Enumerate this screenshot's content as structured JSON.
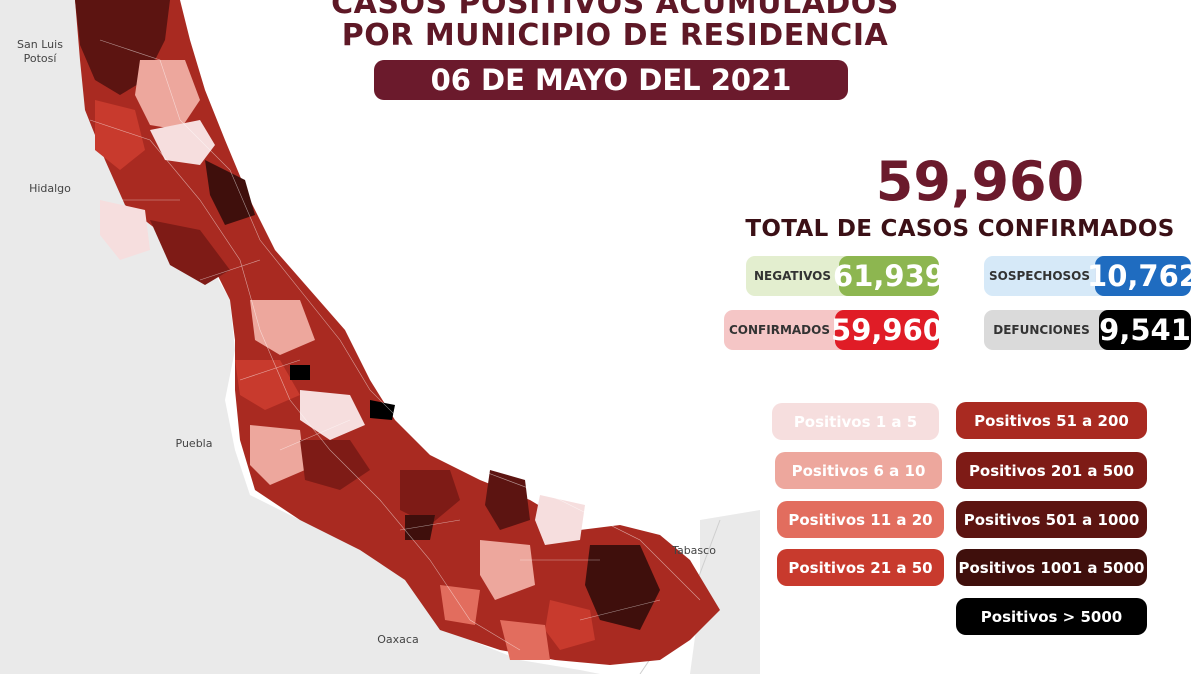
{
  "title_line1": "CASOS POSITIVOS ACUMULADOS",
  "title_line2": "POR MUNICIPIO DE RESIDENCIA",
  "date": "06 DE MAYO DEL 2021",
  "total": {
    "value": "59,960",
    "caption": "TOTAL DE CASOS CONFIRMADOS"
  },
  "stats": {
    "negativos": {
      "label": "NEGATIVOS",
      "value": "61,939",
      "color": "#8db650",
      "bg": "#e3eecf"
    },
    "sospechosos": {
      "label": "SOSPECHOSOS",
      "value": "10,762",
      "color": "#1f6cc0",
      "bg": "#d6e9f8"
    },
    "confirmados": {
      "label": "CONFIRMADOS",
      "value": "59,960",
      "color": "#e01c26",
      "bg": "#f5c6c6"
    },
    "defunciones": {
      "label": "DEFUNCIONES",
      "value": "9,541",
      "color": "#000000",
      "bg": "#dadada"
    }
  },
  "legend": [
    {
      "label": "Positivos 1 a 5",
      "color": "#f6dede"
    },
    {
      "label": "Positivos 6 a 10",
      "color": "#eda79d"
    },
    {
      "label": "Positivos 11 a 20",
      "color": "#e26d5e"
    },
    {
      "label": "Positivos 21 a 50",
      "color": "#c83a2d"
    },
    {
      "label": "Positivos 51 a 200",
      "color": "#a92a21"
    },
    {
      "label": "Positivos 201 a 500",
      "color": "#7e1b16"
    },
    {
      "label": "Positivos 501 a 1000",
      "color": "#5c1411"
    },
    {
      "label": "Positivos 1001 a 5000",
      "color": "#3f0f0c"
    },
    {
      "label": "Positivos > 5000",
      "color": "#000000"
    }
  ],
  "neighbors": {
    "slp": "San Luis\nPotosí",
    "hidalgo": "Hidalgo",
    "puebla": "Puebla",
    "oaxaca": "Oaxaca",
    "tabasco": "Tabasco"
  },
  "map_colors": {
    "land": "#ececec",
    "border": "#ffffff"
  }
}
